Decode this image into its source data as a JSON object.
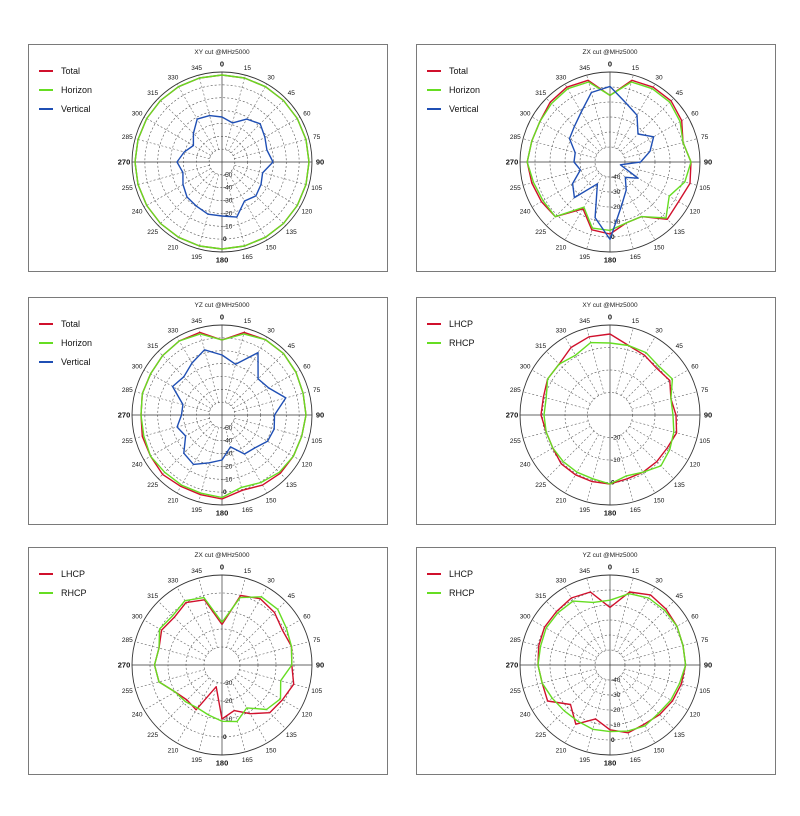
{
  "chart_data": [
    {
      "type": "polar",
      "title": "XY cut @MHz5000",
      "series": [
        {
          "name": "Total",
          "color": "#d0102c",
          "values": [
            -2,
            -2,
            -2,
            -2,
            -2,
            -2,
            -2,
            -2,
            -2,
            -2,
            -2,
            -2,
            -2,
            -2,
            -2,
            -2,
            -2,
            -2,
            -2,
            -2,
            -2,
            -2,
            -2,
            -2
          ]
        },
        {
          "name": "Horizon",
          "color": "#66dd22",
          "values": [
            -2,
            -2,
            -2,
            -2,
            -2,
            -2,
            -2,
            -2,
            -2,
            -2,
            -2,
            -2,
            -2,
            -2,
            -2,
            -2,
            -2,
            -2,
            -2,
            -2,
            -2,
            -2,
            -2,
            -2
          ]
        },
        {
          "name": "Vertical",
          "color": "#1f4fb4",
          "values": [
            -30,
            -33,
            -27,
            -24,
            -27,
            -29,
            -26,
            -32,
            -30,
            -28,
            -30,
            -22,
            -24,
            -24,
            -26,
            -27,
            -30,
            -33,
            -30,
            -34,
            -38,
            -33,
            -27,
            -28
          ]
        }
      ],
      "angle_ticks": [
        "0",
        "15",
        "30",
        "45",
        "60",
        "75",
        "90",
        "105",
        "120",
        "135",
        "150",
        "165",
        "180",
        "195",
        "210",
        "225",
        "240",
        "255",
        "270",
        "285",
        "300",
        "315",
        "330",
        "345"
      ],
      "radial_ticks": [
        "-50",
        "-40",
        "-30",
        "-20",
        "-10",
        "0"
      ],
      "r_range": [
        -60,
        0
      ]
    },
    {
      "type": "polar",
      "title": "ZX cut @MHz5000",
      "series": [
        {
          "name": "Total",
          "color": "#d0102c",
          "values": [
            -13,
            -3,
            -2,
            -2,
            -4,
            -8,
            -5,
            -4,
            -6,
            -5,
            -15,
            -15,
            -10,
            -11,
            -20,
            -7,
            -6,
            -5,
            -4,
            -5,
            -5,
            -3,
            -2,
            -3
          ]
        },
        {
          "name": "Horizon",
          "color": "#66dd22",
          "values": [
            -13,
            -4,
            -3,
            -3,
            -5,
            -8,
            -5,
            -7,
            -12,
            -6,
            -15,
            -15,
            -12,
            -12,
            -21,
            -7,
            -7,
            -6,
            -4,
            -5,
            -5,
            -4,
            -3,
            -4
          ]
        },
        {
          "name": "Vertical",
          "color": "#1f4fb4",
          "values": [
            -8,
            -16,
            -20,
            -28,
            -22,
            -27,
            -33,
            -44,
            -32,
            -38,
            -32,
            -25,
            -7,
            -18,
            -36,
            -22,
            -26,
            -33,
            -30,
            -30,
            -24,
            -22,
            -18,
            -10
          ]
        }
      ],
      "angle_ticks": [
        "0",
        "15",
        "30",
        "45",
        "60",
        "75",
        "90",
        "105",
        "120",
        "135",
        "150",
        "165",
        "180",
        "195",
        "210",
        "225",
        "240",
        "255",
        "270",
        "285",
        "300",
        "315",
        "330",
        "345"
      ],
      "radial_ticks": [
        "-40",
        "-30",
        "-20",
        "-10",
        "0"
      ],
      "r_range": [
        -50,
        0
      ]
    },
    {
      "type": "polar",
      "title": "YZ cut @MHz5000",
      "series": [
        {
          "name": "Total",
          "color": "#d0102c",
          "values": [
            -10,
            -3,
            -2,
            -2,
            -3,
            -4,
            -4,
            -5,
            -5,
            -5,
            -6,
            -8,
            -4,
            -5,
            -5,
            -4,
            -5,
            -5,
            -6,
            -5,
            -5,
            -4,
            -3,
            -3
          ]
        },
        {
          "name": "Horizon",
          "color": "#66dd22",
          "values": [
            -10,
            -4,
            -2,
            -2,
            -3,
            -4,
            -4,
            -5,
            -5,
            -6,
            -8,
            -10,
            -5,
            -6,
            -6,
            -6,
            -5,
            -6,
            -6,
            -5,
            -5,
            -4,
            -3,
            -4
          ]
        },
        {
          "name": "Vertical",
          "color": "#1f4fb4",
          "values": [
            -20,
            -25,
            -12,
            -26,
            -24,
            -16,
            -25,
            -24,
            -25,
            -29,
            -30,
            -38,
            -30,
            -27,
            -22,
            -24,
            -32,
            -29,
            -33,
            -33,
            -22,
            -24,
            -20,
            -15
          ]
        }
      ],
      "angle_ticks": [
        "0",
        "15",
        "30",
        "45",
        "60",
        "75",
        "90",
        "105",
        "120",
        "135",
        "150",
        "165",
        "180",
        "195",
        "210",
        "225",
        "240",
        "255",
        "270",
        "285",
        "300",
        "315",
        "330",
        "345"
      ],
      "radial_ticks": [
        "-50",
        "-40",
        "-30",
        "-20",
        "-10",
        "0"
      ],
      "r_range": [
        -60,
        0
      ]
    },
    {
      "type": "polar",
      "title": "XY cut @MHz5000",
      "series": [
        {
          "name": "LHCP",
          "color": "#d0102c",
          "values": [
            -3,
            -6,
            -7,
            -8,
            -7,
            -9,
            -8,
            -7,
            -8,
            -8,
            -8,
            -8,
            -7,
            -7,
            -7,
            -7,
            -8,
            -8,
            -7,
            -7,
            -6,
            -6,
            -4,
            -3
          ]
        },
        {
          "name": "RHCP",
          "color": "#66dd22",
          "values": [
            -6,
            -6,
            -6,
            -7,
            -6,
            -9,
            -9,
            -8,
            -7,
            -6,
            -8,
            -9,
            -7,
            -8,
            -8,
            -8,
            -8,
            -8,
            -8,
            -8,
            -6,
            -6,
            -7,
            -5
          ]
        }
      ],
      "angle_ticks": [
        "0",
        "15",
        "30",
        "45",
        "60",
        "75",
        "90",
        "105",
        "120",
        "135",
        "150",
        "165",
        "180",
        "195",
        "210",
        "225",
        "240",
        "255",
        "270",
        "285",
        "300",
        "315",
        "330",
        "345"
      ],
      "radial_ticks": [
        "-20",
        "-10",
        "0"
      ],
      "r_range": [
        -30,
        0
      ]
    },
    {
      "type": "polar",
      "title": "ZX cut @MHz5000",
      "series": [
        {
          "name": "LHCP",
          "color": "#d0102c",
          "values": [
            -22,
            -8,
            -6,
            -7,
            -9,
            -8,
            -9,
            -7,
            -9,
            -10,
            -15,
            -19,
            -16,
            -30,
            -17,
            -18,
            -16,
            -11,
            -10,
            -11,
            -9,
            -10,
            -8,
            -10
          ]
        },
        {
          "name": "RHCP",
          "color": "#66dd22",
          "values": [
            -21,
            -9,
            -5,
            -5,
            -7,
            -8,
            -9,
            -13,
            -10,
            -12,
            -18,
            -14,
            -15,
            -17,
            -18,
            -17,
            -16,
            -11,
            -10,
            -11,
            -8,
            -9,
            -7,
            -9
          ]
        }
      ],
      "angle_ticks": [
        "0",
        "15",
        "30",
        "45",
        "60",
        "75",
        "90",
        "105",
        "120",
        "135",
        "150",
        "165",
        "180",
        "195",
        "210",
        "225",
        "240",
        "255",
        "270",
        "285",
        "300",
        "315",
        "330",
        "345"
      ],
      "radial_ticks": [
        "-30",
        "-20",
        "-10",
        "0"
      ],
      "r_range": [
        -40,
        0
      ]
    },
    {
      "type": "polar",
      "title": "YZ cut @MHz5000",
      "series": [
        {
          "name": "LHCP",
          "color": "#d0102c",
          "values": [
            -18,
            -8,
            -5,
            -6,
            -7,
            -8,
            -8,
            -9,
            -10,
            -11,
            -12,
            -11,
            -14,
            -19,
            -12,
            -19,
            -10,
            -11,
            -10,
            -9,
            -8,
            -8,
            -7,
            -8
          ]
        },
        {
          "name": "RHCP",
          "color": "#66dd22",
          "values": [
            -14,
            -9,
            -7,
            -7,
            -7,
            -8,
            -8,
            -10,
            -11,
            -12,
            -11,
            -12,
            -13,
            -13,
            -14,
            -14,
            -13,
            -11,
            -10,
            -10,
            -9,
            -9,
            -9,
            -14
          ]
        }
      ],
      "angle_ticks": [
        "0",
        "15",
        "30",
        "45",
        "60",
        "75",
        "90",
        "105",
        "120",
        "135",
        "150",
        "165",
        "180",
        "195",
        "210",
        "225",
        "240",
        "255",
        "270",
        "285",
        "300",
        "315",
        "330",
        "345"
      ],
      "radial_ticks": [
        "-40",
        "-30",
        "-20",
        "-10",
        "0"
      ],
      "r_range": [
        -50,
        0
      ]
    }
  ]
}
